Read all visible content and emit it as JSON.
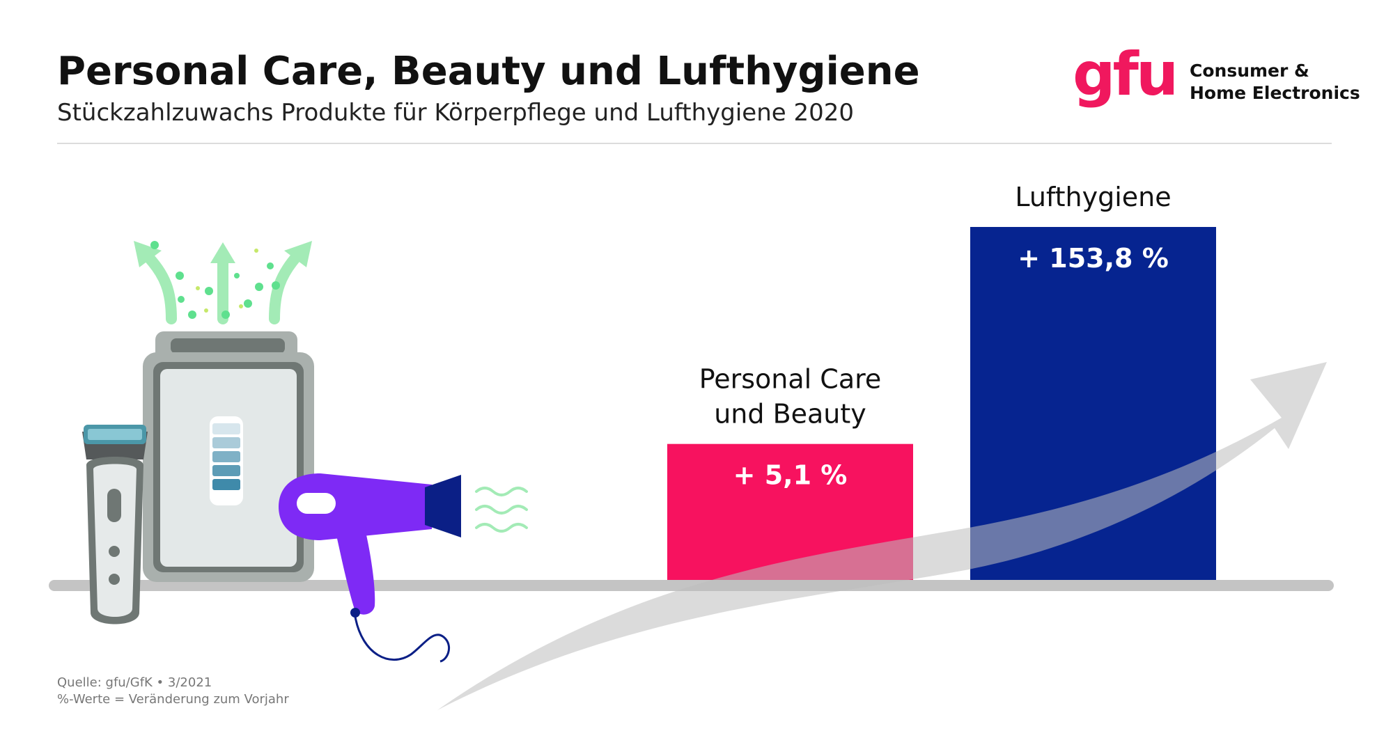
{
  "header": {
    "title": "Personal Care, Beauty und Lufthygiene",
    "subtitle": "Stückzahlzuwachs Produkte für Körperpflege und Lufthygiene 2020"
  },
  "logo": {
    "mark": "gfu",
    "line1": "Consumer &",
    "line2": "Home Electronics"
  },
  "footer": {
    "source": "Quelle: gfu/GfK • 3/2021",
    "note": "%-Werte = Veränderung zum Vorjahr"
  },
  "colors": {
    "pink": "#f7125f",
    "navy": "#062490",
    "gray_shelf": "#c4c4c4",
    "arrow": "#bebebe"
  },
  "chart_data": {
    "type": "bar",
    "title": "Personal Care, Beauty und Lufthygiene",
    "subtitle": "Stückzahlzuwachs Produkte für Körperpflege und Lufthygiene 2020",
    "categories": [
      "Personal Care\nund Beauty",
      "Lufthygiene"
    ],
    "category_lines": [
      [
        "Personal Care",
        "und Beauty"
      ],
      [
        "Lufthygiene"
      ]
    ],
    "values": [
      5.1,
      153.8
    ],
    "value_labels": [
      "+ 5,1 %",
      "+ 153,8 %"
    ],
    "unit": "%",
    "xlabel": "",
    "ylabel": "",
    "grid": false,
    "legend": "none"
  }
}
